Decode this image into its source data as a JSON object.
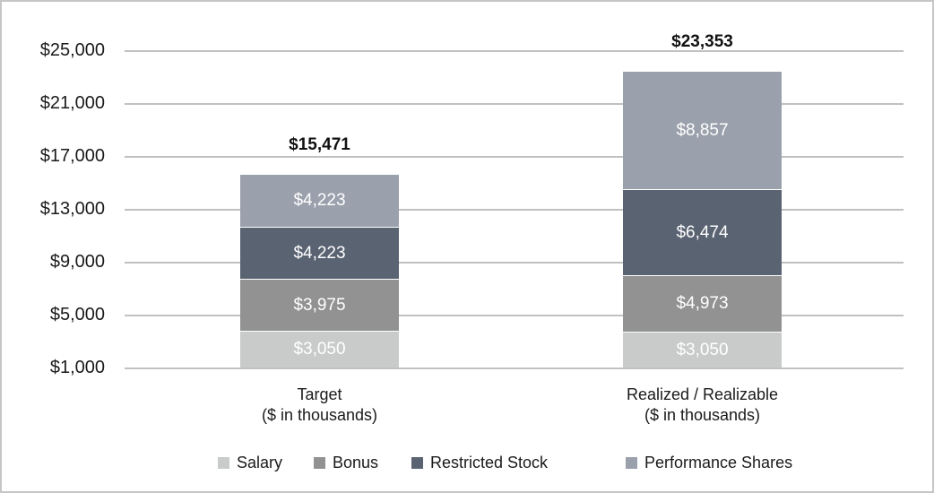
{
  "chart_data": {
    "type": "bar",
    "stacked": true,
    "title": "",
    "categories": [
      {
        "label": "Target",
        "sublabel": "($ in thousands)"
      },
      {
        "label": "Realized / Realizable",
        "sublabel": "($ in thousands)"
      }
    ],
    "series": [
      {
        "name": "Salary",
        "color": "#c9cbcb",
        "values": [
          3050,
          3050
        ],
        "labels": [
          "$3,050",
          "$3,050"
        ]
      },
      {
        "name": "Bonus",
        "color": "#929292",
        "values": [
          3975,
          4973
        ],
        "labels": [
          "$3,975",
          "$4,973"
        ]
      },
      {
        "name": "Restricted Stock",
        "color": "#5a6372",
        "values": [
          4223,
          6474
        ],
        "labels": [
          "$4,223",
          "$6,474"
        ]
      },
      {
        "name": "Performance Shares",
        "color": "#9aa0ac",
        "values": [
          4223,
          8857
        ],
        "labels": [
          "$4,223",
          "$8,857"
        ]
      }
    ],
    "totals": [
      15471,
      23353
    ],
    "total_labels": [
      "$15,471",
      "$23,353"
    ],
    "y_axis": {
      "min": 1000,
      "max": 25000,
      "step": 4000,
      "ticks": [
        {
          "value": 25000,
          "label": "$25,000"
        },
        {
          "value": 21000,
          "label": "$21,000"
        },
        {
          "value": 17000,
          "label": "$17,000"
        },
        {
          "value": 13000,
          "label": "$13,000"
        },
        {
          "value": 9000,
          "label": "$9,000"
        },
        {
          "value": 5000,
          "label": "$5,000"
        },
        {
          "value": 1000,
          "label": "$1,000"
        }
      ]
    },
    "legend": {
      "position": "bottom",
      "entries": [
        "Salary",
        "Bonus",
        "Restricted Stock",
        "Performance Shares"
      ]
    },
    "grid": true
  },
  "colors": {
    "gridline": "#c1c1c1",
    "canvas_border": "#c6c6c6",
    "axis_text": "#1a1a1a",
    "bar_value_text": "#ffffff",
    "total_text": "#111111",
    "background": "#ffffff"
  }
}
